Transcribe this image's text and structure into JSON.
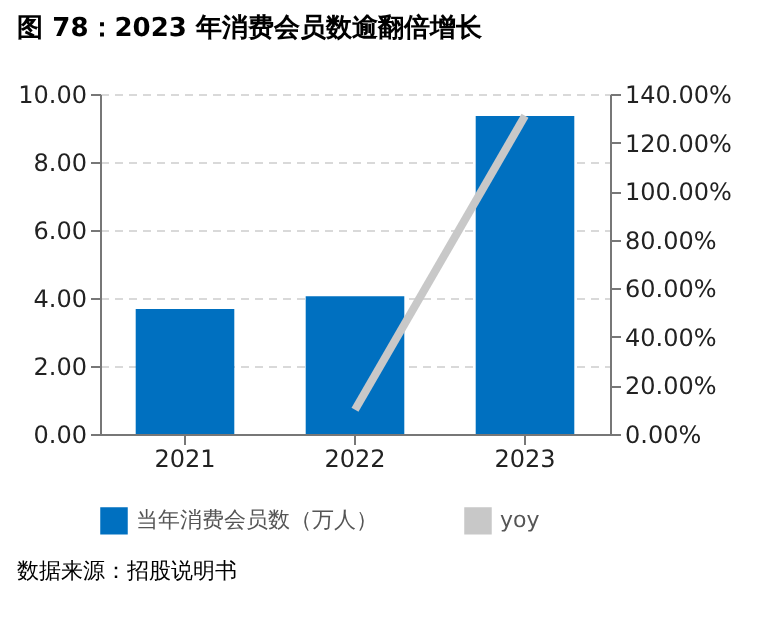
{
  "chart_data": {
    "type": "bar",
    "title": "图 78：2023 年消费会员数逾翻倍增长",
    "categories": [
      "2021",
      "2022",
      "2023"
    ],
    "series": [
      {
        "name": "当年消费会员数（万人）",
        "color": "#0070c0",
        "values": [
          3.68,
          4.05,
          9.35
        ]
      },
      {
        "name": "yoy",
        "type": "line",
        "axis": "y2",
        "color": "#c8c8c8",
        "values": [
          null,
          10,
          131
        ]
      }
    ],
    "ylim": [
      0,
      10
    ],
    "yticks": [
      {
        "value": 0,
        "label": "0.00"
      },
      {
        "value": 2,
        "label": "2.00"
      },
      {
        "value": 4,
        "label": "4.00"
      },
      {
        "value": 6,
        "label": "6.00"
      },
      {
        "value": 8,
        "label": "8.00"
      },
      {
        "value": 10,
        "label": "10.00"
      }
    ],
    "y2lim": [
      0,
      140
    ],
    "y2ticks": [
      {
        "value": 0,
        "label": "0.00%"
      },
      {
        "value": 20,
        "label": "20.00%"
      },
      {
        "value": 40,
        "label": "40.00%"
      },
      {
        "value": 60,
        "label": "60.00%"
      },
      {
        "value": 80,
        "label": "80.00%"
      },
      {
        "value": 100,
        "label": "100.00%"
      },
      {
        "value": 120,
        "label": "120.00%"
      },
      {
        "value": 140,
        "label": "140.00%"
      }
    ],
    "grid": "y",
    "legend": "bottom",
    "annotations": [
      "数据来源：招股说明书"
    ]
  }
}
